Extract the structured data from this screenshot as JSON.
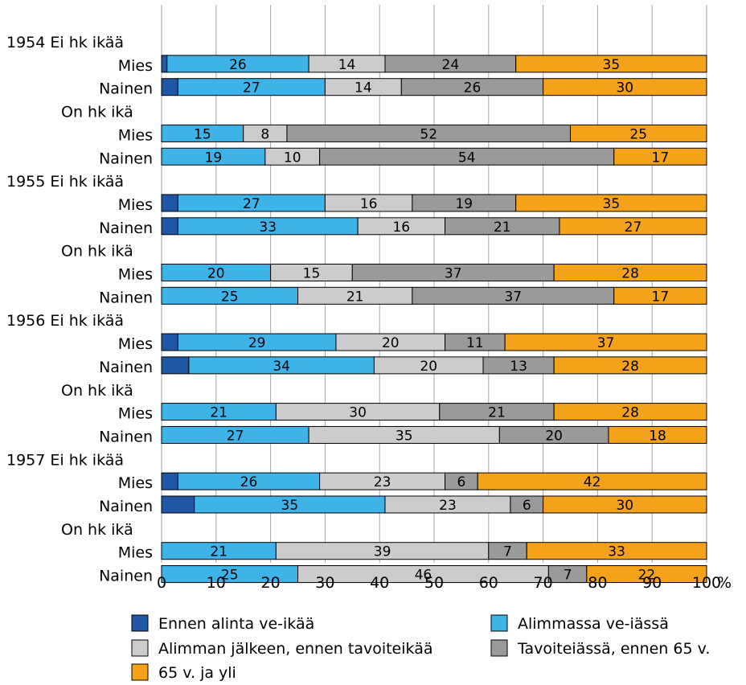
{
  "chart_data": {
    "type": "bar",
    "orientation": "horizontal",
    "stacked": true,
    "xlim": [
      0,
      100
    ],
    "x_ticks": [
      "0",
      "10",
      "20",
      "30",
      "40",
      "50",
      "60",
      "70",
      "80",
      "90",
      "100"
    ],
    "x_unit": "%",
    "grid": "vertical",
    "legend_position": "bottom",
    "row_labels": [
      {
        "label": "1954  Ei hk ikää",
        "indent": 0
      },
      {
        "label": "Mies",
        "indent": 1
      },
      {
        "label": "Nainen",
        "indent": 1
      },
      {
        "label": "On hk ikä",
        "indent": 2
      },
      {
        "label": "Mies",
        "indent": 1
      },
      {
        "label": "Nainen",
        "indent": 1
      },
      {
        "label": "1955  Ei hk ikää",
        "indent": 0
      },
      {
        "label": "Mies",
        "indent": 1
      },
      {
        "label": "Nainen",
        "indent": 1
      },
      {
        "label": "On hk ikä",
        "indent": 2
      },
      {
        "label": "Mies",
        "indent": 1
      },
      {
        "label": "Nainen",
        "indent": 1
      },
      {
        "label": "1956  Ei hk ikää",
        "indent": 0
      },
      {
        "label": "Mies",
        "indent": 1
      },
      {
        "label": "Nainen",
        "indent": 1
      },
      {
        "label": "On hk ikä",
        "indent": 2
      },
      {
        "label": "Mies",
        "indent": 1
      },
      {
        "label": "Nainen",
        "indent": 1
      },
      {
        "label": "1957  Ei hk ikää",
        "indent": 0
      },
      {
        "label": "Mies",
        "indent": 1
      },
      {
        "label": "Nainen",
        "indent": 1
      },
      {
        "label": "On hk ikä",
        "indent": 2
      },
      {
        "label": "Mies",
        "indent": 1
      },
      {
        "label": "Nainen",
        "indent": 1
      }
    ],
    "series": [
      {
        "name": "Ennen alinta ve-ikää",
        "color": "#1f57a5",
        "values": [
          1,
          3,
          0,
          0,
          3,
          3,
          0,
          0,
          3,
          5,
          0,
          0,
          3,
          6,
          0,
          0
        ]
      },
      {
        "name": "Alimmassa ve-iässä",
        "color": "#3db3e8",
        "values": [
          26,
          27,
          15,
          19,
          27,
          33,
          20,
          25,
          29,
          34,
          21,
          27,
          26,
          35,
          21,
          25
        ]
      },
      {
        "name": "Alimman jälkeen, ennen tavoiteikää",
        "color": "#cccccc",
        "values": [
          14,
          14,
          8,
          10,
          16,
          16,
          15,
          21,
          20,
          20,
          30,
          35,
          23,
          23,
          39,
          46
        ]
      },
      {
        "name": "Tavoiteiässä, ennen 65 v.",
        "color": "#9a9a9a",
        "values": [
          24,
          26,
          52,
          54,
          19,
          21,
          37,
          37,
          11,
          13,
          21,
          20,
          6,
          6,
          7,
          7
        ]
      },
      {
        "name": "65 v. ja yli",
        "color": "#f5a21b",
        "values": [
          35,
          30,
          25,
          17,
          35,
          27,
          28,
          17,
          37,
          28,
          28,
          18,
          42,
          30,
          33,
          22
        ]
      }
    ],
    "bar_label_series": [
      "Alimmassa ve-iässä",
      "Alimman jälkeen, ennen tavoiteikää",
      "Tavoiteiässä, ennen 65 v.",
      "65 v. ja yli"
    ]
  }
}
